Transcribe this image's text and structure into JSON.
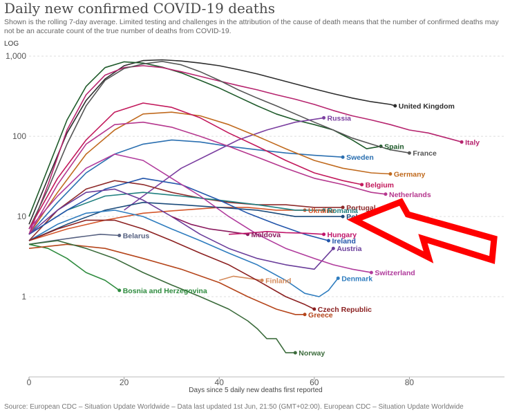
{
  "header": {
    "title": "Daily new confirmed COVID-19 deaths",
    "subtitle": "Shown is the rolling 7-day average. Limited testing and challenges in the attribution of the cause of death means that the number of confirmed deaths may not be an accurate count of the true number of deaths from COVID-19.",
    "scale_label": "LOG"
  },
  "footer": {
    "source": "Source: European CDC – Situation Update Worldwide – Data last updated 1st Jun, 21:50 (GMT+02:00). European CDC – Situation Update Worldwide"
  },
  "annotation": {
    "type": "red-arrow",
    "points_to": "Poland",
    "color": "#ff0000"
  },
  "chart_data": {
    "type": "line",
    "title": "Daily new confirmed COVID-19 deaths",
    "xlabel": "Days since 5 daily new deaths first reported",
    "ylabel": "",
    "yscale": "log",
    "xlim": [
      0,
      100
    ],
    "ylim": [
      0.1,
      1200
    ],
    "xticks": [
      0,
      20,
      40,
      60,
      80
    ],
    "yticks": [
      1,
      10,
      100,
      1000
    ],
    "ytick_labels": [
      "1",
      "10",
      "100",
      "1,000"
    ],
    "grid": "horizontal-dashed",
    "series": [
      {
        "name": "United Kingdom",
        "color": "#2d2d2d",
        "x": [
          0,
          4,
          8,
          12,
          16,
          20,
          24,
          28,
          32,
          36,
          40,
          44,
          48,
          52,
          56,
          60,
          64,
          68,
          72,
          76,
          77
        ],
        "y": [
          8,
          30,
          110,
          280,
          520,
          760,
          880,
          900,
          870,
          820,
          760,
          680,
          600,
          520,
          450,
          390,
          340,
          300,
          270,
          250,
          240
        ]
      },
      {
        "name": "Spain",
        "color": "#1e5a2a",
        "x": [
          0,
          4,
          8,
          12,
          16,
          20,
          24,
          28,
          32,
          36,
          40,
          44,
          48,
          52,
          56,
          60,
          64,
          68,
          71,
          74
        ],
        "y": [
          10,
          40,
          160,
          420,
          720,
          850,
          820,
          730,
          620,
          500,
          400,
          310,
          240,
          190,
          160,
          140,
          120,
          90,
          70,
          75
        ]
      },
      {
        "name": "Italy",
        "color": "#b6246e",
        "x": [
          0,
          4,
          8,
          12,
          16,
          20,
          24,
          28,
          32,
          36,
          40,
          44,
          48,
          52,
          56,
          60,
          64,
          68,
          72,
          76,
          80,
          84,
          88,
          91
        ],
        "y": [
          6,
          25,
          120,
          330,
          580,
          720,
          760,
          720,
          640,
          560,
          490,
          430,
          380,
          330,
          290,
          250,
          210,
          180,
          160,
          140,
          120,
          110,
          95,
          85
        ]
      },
      {
        "name": "France",
        "color": "#555555",
        "x": [
          0,
          4,
          8,
          12,
          16,
          20,
          24,
          28,
          32,
          36,
          40,
          44,
          48,
          52,
          56,
          60,
          64,
          68,
          72,
          76,
          80
        ],
        "y": [
          7,
          22,
          80,
          240,
          500,
          700,
          800,
          860,
          780,
          640,
          500,
          380,
          300,
          240,
          190,
          150,
          120,
          95,
          80,
          68,
          62
        ]
      },
      {
        "name": "Russia",
        "color": "#7b3fa0",
        "x": [
          20,
          26,
          32,
          38,
          44,
          50,
          56,
          62
        ],
        "y": [
          12,
          22,
          40,
          60,
          90,
          120,
          150,
          170
        ]
      },
      {
        "name": "Sweden",
        "color": "#2a6fb0",
        "x": [
          0,
          6,
          12,
          18,
          24,
          30,
          36,
          42,
          48,
          54,
          60,
          66
        ],
        "y": [
          6,
          15,
          35,
          60,
          80,
          90,
          85,
          75,
          68,
          62,
          58,
          55
        ]
      },
      {
        "name": "Germany",
        "color": "#c06a1e",
        "x": [
          0,
          6,
          12,
          18,
          24,
          30,
          36,
          42,
          48,
          54,
          60,
          66,
          72,
          76
        ],
        "y": [
          6,
          20,
          60,
          120,
          190,
          200,
          180,
          140,
          100,
          70,
          50,
          40,
          35,
          34
        ]
      },
      {
        "name": "Belgium",
        "color": "#c2185b",
        "x": [
          0,
          6,
          12,
          18,
          24,
          30,
          36,
          42,
          48,
          54,
          60,
          66,
          70
        ],
        "y": [
          7,
          30,
          90,
          200,
          260,
          230,
          170,
          110,
          75,
          50,
          35,
          28,
          25
        ]
      },
      {
        "name": "Netherlands",
        "color": "#b5378e",
        "x": [
          0,
          6,
          12,
          18,
          24,
          30,
          36,
          42,
          48,
          54,
          60,
          66,
          72,
          75
        ],
        "y": [
          6,
          25,
          80,
          140,
          150,
          130,
          100,
          75,
          55,
          40,
          30,
          25,
          20,
          19
        ]
      },
      {
        "name": "Portugal",
        "color": "#8e2a2a",
        "x": [
          0,
          6,
          12,
          18,
          24,
          30,
          36,
          42,
          48,
          54,
          60,
          66
        ],
        "y": [
          5,
          12,
          22,
          28,
          25,
          20,
          17,
          15,
          14,
          14,
          13,
          13
        ]
      },
      {
        "name": "Ukraine",
        "color": "#d4562a",
        "x": [
          0,
          8,
          16,
          24,
          32,
          40,
          46,
          52,
          58
        ],
        "y": [
          5,
          7,
          9,
          11,
          12,
          13,
          13,
          12,
          12
        ]
      },
      {
        "name": "Romania",
        "color": "#1f7f7f",
        "x": [
          0,
          8,
          16,
          24,
          32,
          40,
          48,
          56,
          62
        ],
        "y": [
          6,
          12,
          18,
          20,
          18,
          16,
          14,
          12,
          12
        ]
      },
      {
        "name": "Poland",
        "color": "#1a4a7a",
        "x": [
          0,
          8,
          16,
          24,
          32,
          40,
          48,
          56,
          60,
          66
        ],
        "y": [
          5,
          8,
          12,
          15,
          14,
          13,
          12,
          10,
          10,
          10
        ]
      },
      {
        "name": "Ireland",
        "color": "#2255aa",
        "x": [
          0,
          8,
          16,
          24,
          32,
          40,
          46,
          52,
          58,
          63
        ],
        "y": [
          6,
          12,
          22,
          30,
          25,
          16,
          11,
          8,
          6,
          5
        ]
      },
      {
        "name": "Austria",
        "color": "#6a3d9a",
        "x": [
          0,
          6,
          12,
          18,
          24,
          30,
          36,
          42,
          48,
          54,
          60,
          64
        ],
        "y": [
          6,
          12,
          20,
          22,
          16,
          10,
          6,
          4,
          3,
          2.5,
          2.2,
          4
        ]
      },
      {
        "name": "Switzerland",
        "color": "#b03b9c",
        "x": [
          0,
          6,
          12,
          18,
          24,
          30,
          36,
          42,
          48,
          54,
          60,
          64,
          68,
          72
        ],
        "y": [
          7,
          18,
          40,
          60,
          50,
          30,
          18,
          10,
          6,
          4,
          3,
          2.5,
          2.2,
          2
        ]
      },
      {
        "name": "Denmark",
        "color": "#2f7dbf",
        "x": [
          0,
          6,
          12,
          18,
          24,
          30,
          36,
          42,
          48,
          54,
          58,
          61,
          63,
          65
        ],
        "y": [
          5,
          8,
          11,
          12,
          10,
          7,
          5,
          3.5,
          2.5,
          1.6,
          1.1,
          1,
          1.2,
          1.7
        ]
      },
      {
        "name": "Moldova",
        "color": "#8a1a5e",
        "x": [
          30,
          34,
          38,
          42,
          46
        ],
        "y": [
          10,
          8,
          7,
          6.5,
          6
        ]
      },
      {
        "name": "Hungary",
        "color": "#c0156a",
        "x": [
          42,
          46,
          50,
          54,
          58,
          62
        ],
        "y": [
          6,
          6.2,
          6.5,
          6.3,
          6.2,
          6
        ]
      },
      {
        "name": "Belarus",
        "color": "#556080",
        "x": [
          0,
          5,
          10,
          15,
          19
        ],
        "y": [
          4.5,
          5,
          5.5,
          6,
          5.8
        ]
      },
      {
        "name": "Finland",
        "color": "#d48a5a",
        "x": [
          40,
          43,
          46,
          49
        ],
        "y": [
          1.6,
          1.8,
          1.7,
          1.6
        ]
      },
      {
        "name": "Bosnia and Herzegovina",
        "color": "#2e8b3e",
        "x": [
          0,
          4,
          8,
          12,
          16,
          19
        ],
        "y": [
          4.5,
          4,
          3,
          2,
          1.6,
          1.2
        ]
      },
      {
        "name": "Czech Republic",
        "color": "#8b2020",
        "x": [
          0,
          6,
          12,
          18,
          24,
          30,
          36,
          42,
          48,
          54,
          58,
          60
        ],
        "y": [
          5,
          7,
          9,
          9,
          7,
          5,
          3.5,
          2.5,
          1.6,
          1,
          0.8,
          0.7
        ]
      },
      {
        "name": "Greece",
        "color": "#b5451b",
        "x": [
          0,
          8,
          16,
          24,
          32,
          40,
          46,
          52,
          56,
          58
        ],
        "y": [
          4,
          4.5,
          4,
          3,
          2.2,
          1.5,
          1,
          0.7,
          0.6,
          0.6
        ]
      },
      {
        "name": "Norway",
        "color": "#3b6b3b",
        "x": [
          0,
          6,
          12,
          18,
          24,
          30,
          36,
          42,
          46,
          48,
          50,
          52,
          54,
          56
        ],
        "y": [
          4.5,
          5,
          4,
          3,
          2,
          1.4,
          1,
          0.7,
          0.5,
          0.4,
          0.3,
          0.3,
          0.2,
          0.2
        ]
      }
    ]
  }
}
